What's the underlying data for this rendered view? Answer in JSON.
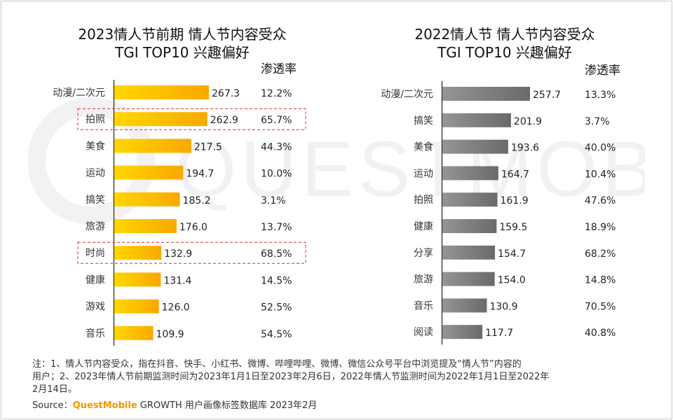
{
  "colors": {
    "left_bar_start": "#ffd700",
    "left_bar_end": "#f9a800",
    "right_bar_start": "#959595",
    "right_bar_end": "#6a6a6a",
    "highlight_border": "#e0282e",
    "accent": "#f39800"
  },
  "chart_data": [
    {
      "type": "bar",
      "orientation": "horizontal",
      "title_line1": "2023情人节前期 情人节内容受众",
      "title_line2": "TGI TOP10 兴趣偏好",
      "value_label": "TGI",
      "penetration_header": "渗透率",
      "categories": [
        "动漫/二次元",
        "拍照",
        "美食",
        "运动",
        "搞笑",
        "旅游",
        "时尚",
        "健康",
        "游戏",
        "音乐"
      ],
      "values": [
        267.3,
        262.9,
        217.5,
        194.7,
        185.2,
        176.0,
        132.9,
        131.4,
        126.0,
        109.9
      ],
      "value_labels": [
        "267.3",
        "262.9",
        "217.5",
        "194.7",
        "185.2",
        "176.0",
        "132.9",
        "131.4",
        "126.0",
        "109.9"
      ],
      "penetration": [
        "12.2%",
        "65.7%",
        "44.3%",
        "10.0%",
        "3.1%",
        "13.7%",
        "68.5%",
        "14.5%",
        "52.5%",
        "54.5%"
      ],
      "highlighted": [
        "拍照",
        "时尚"
      ]
    },
    {
      "type": "bar",
      "orientation": "horizontal",
      "title_line1": "2022情人节 情人节内容受众",
      "title_line2": "TGI TOP10 兴趣偏好",
      "value_label": "TGI",
      "penetration_header": "渗透率",
      "categories": [
        "动漫/二次元",
        "搞笑",
        "美食",
        "运动",
        "拍照",
        "健康",
        "分享",
        "旅游",
        "音乐",
        "阅读"
      ],
      "values": [
        257.7,
        201.9,
        193.6,
        164.7,
        161.9,
        159.5,
        154.7,
        154.0,
        130.9,
        117.7
      ],
      "value_labels": [
        "257.7",
        "201.9",
        "193.6",
        "164.7",
        "161.9",
        "159.5",
        "154.7",
        "154.0",
        "130.9",
        "117.7"
      ],
      "penetration": [
        "13.3%",
        "3.7%",
        "40.0%",
        "10.4%",
        "47.6%",
        "18.9%",
        "68.2%",
        "14.8%",
        "70.5%",
        "40.8%"
      ],
      "highlighted": []
    }
  ],
  "watermark": "QUESTMOBILE",
  "notes": {
    "line1": "注：1、情人节内容受众，指在抖音、快手、小红书、微博、哔哩哔哩、微博、微信公众号平台中浏览提及“情人节”内容的",
    "line2": "用户；2、2023年情人节前期监测时间为2023年1月1日至2023年2月6日，2022年情人节监测时间为2022年1月1日至2022年",
    "line3": "2月14日。"
  },
  "source": {
    "prefix": "Source：",
    "brand": "QuestMobile",
    "suffix": " GROWTH 用户画像标签数据库 2023年2月"
  }
}
